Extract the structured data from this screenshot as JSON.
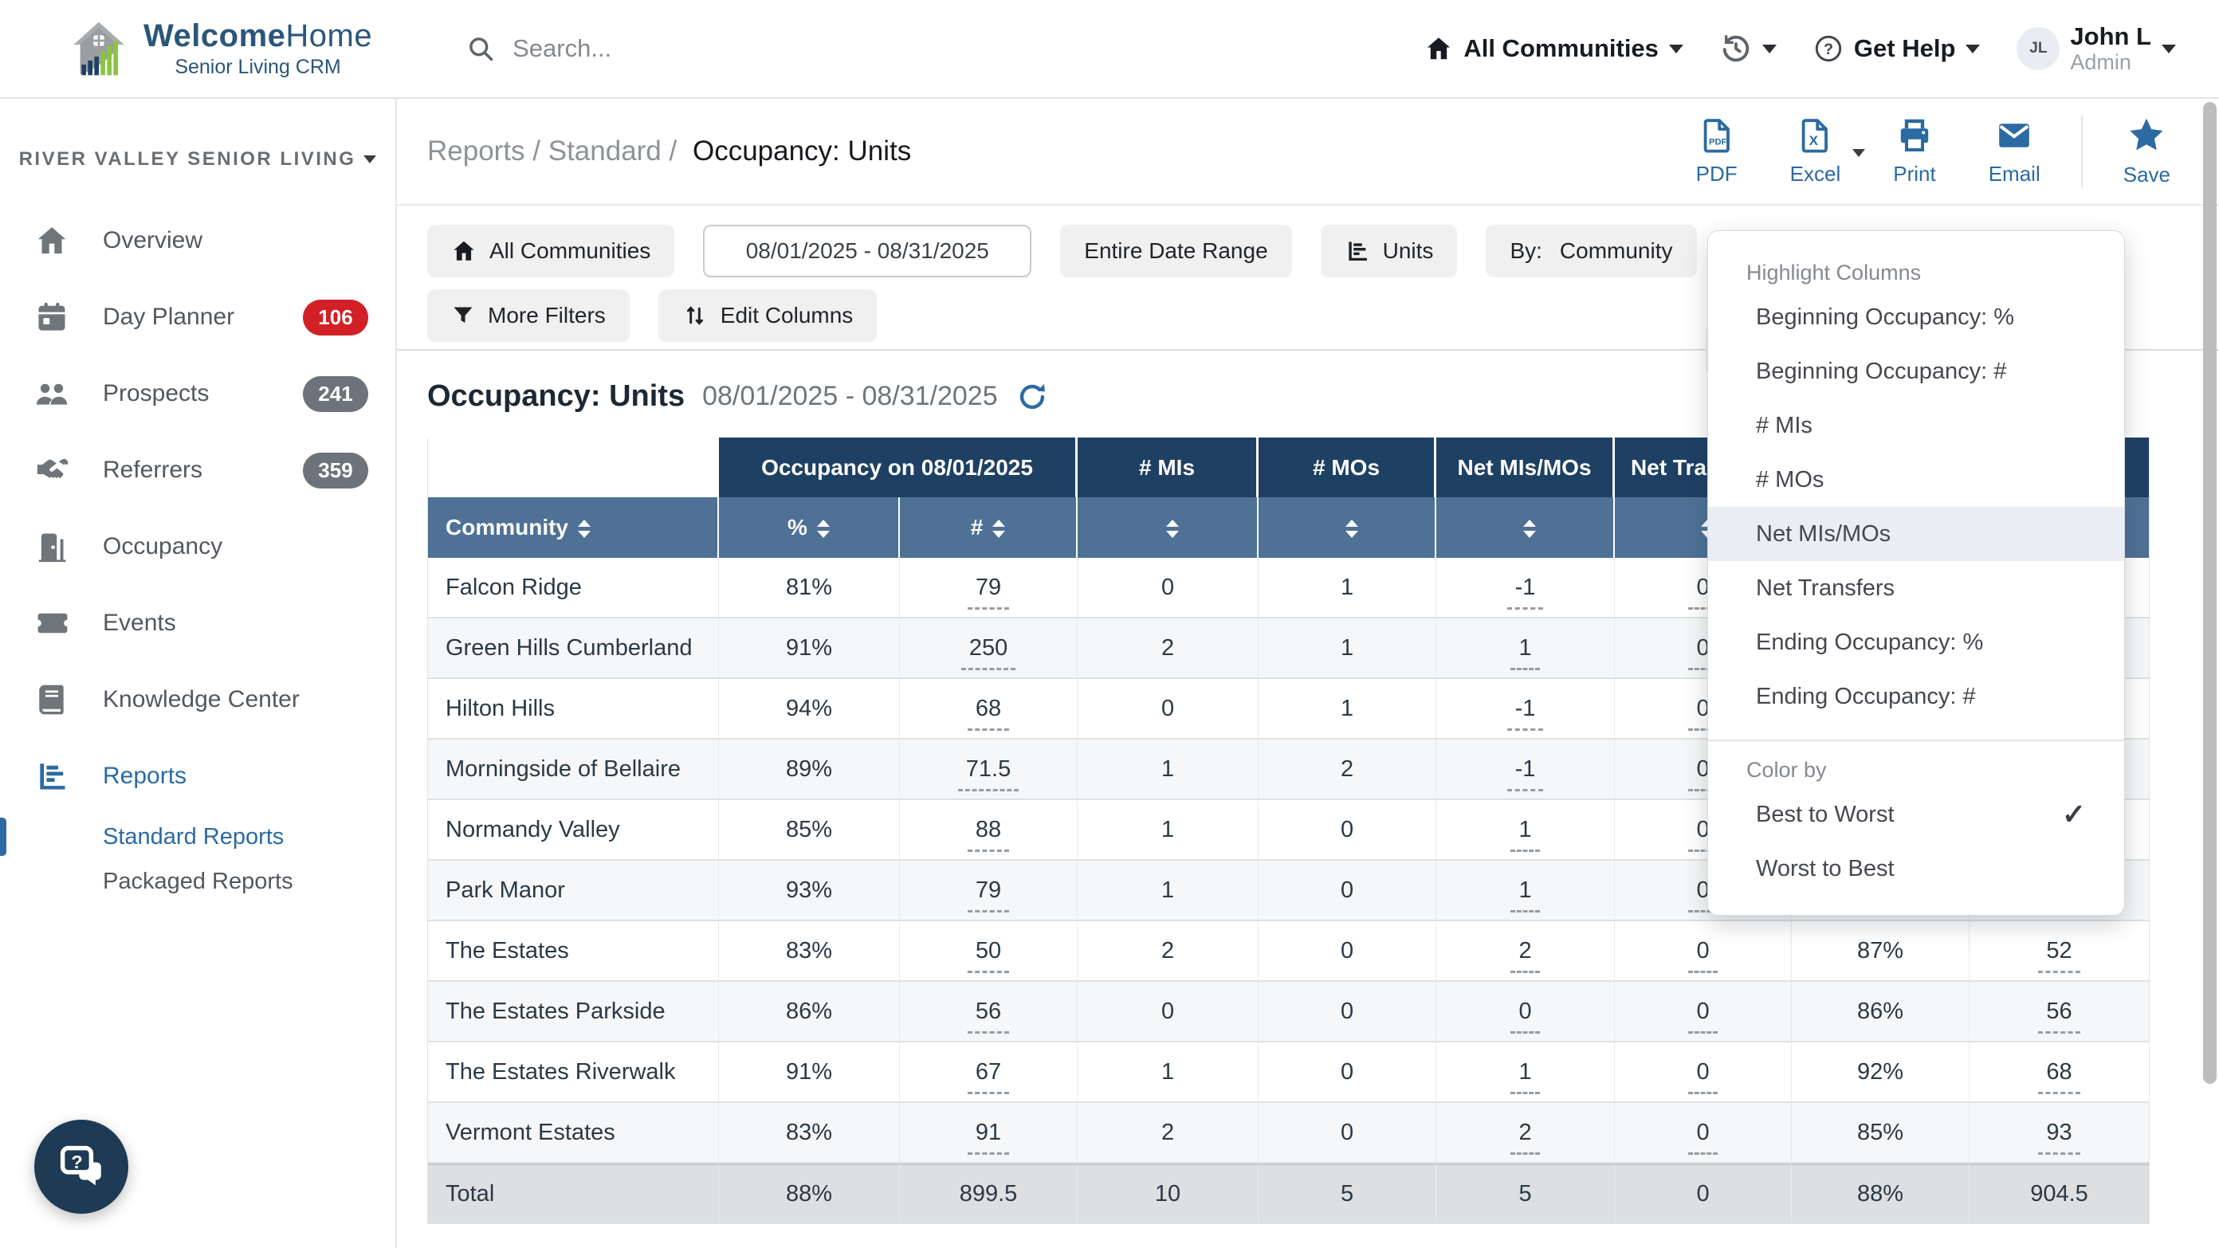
{
  "header": {
    "logo": {
      "title_bold": "Welcome",
      "title_light": "Home",
      "subtitle": "Senior Living CRM"
    },
    "search": {
      "placeholder": "Search..."
    },
    "community_selector": {
      "label": "All Communities"
    },
    "help": {
      "label": "Get Help"
    },
    "user": {
      "initials": "JL",
      "name": "John L",
      "role": "Admin"
    }
  },
  "sidebar": {
    "org": "RIVER VALLEY SENIOR LIVING",
    "items": [
      {
        "label": "Overview",
        "icon": "home-icon"
      },
      {
        "label": "Day Planner",
        "icon": "calendar-icon",
        "badge": "106",
        "badge_color": "#d12026"
      },
      {
        "label": "Prospects",
        "icon": "people-icon",
        "badge": "241",
        "badge_color": "#6d737a"
      },
      {
        "label": "Referrers",
        "icon": "handshake-icon",
        "badge": "359",
        "badge_color": "#6d737a"
      },
      {
        "label": "Occupancy",
        "icon": "door-icon"
      },
      {
        "label": "Events",
        "icon": "ticket-icon"
      },
      {
        "label": "Knowledge Center",
        "icon": "book-icon"
      },
      {
        "label": "Reports",
        "icon": "chart-icon",
        "active": true
      },
      {
        "label": "Standard Reports",
        "sub": true,
        "selected": true
      },
      {
        "label": "Packaged Reports",
        "sub": true
      }
    ]
  },
  "breadcrumb": {
    "path": "Reports / Standard /",
    "current": "Occupancy: Units"
  },
  "toolbar": {
    "pdf": "PDF",
    "excel": "Excel",
    "print": "Print",
    "email": "Email",
    "save": "Save"
  },
  "filters": {
    "all_communities": "All Communities",
    "date_range": "08/01/2025 - 08/31/2025",
    "entire_date_range": "Entire Date Range",
    "units": "Units",
    "by": "By:",
    "by_value": "Community",
    "more_filters": "More Filters",
    "edit_columns": "Edit Columns"
  },
  "report": {
    "title": "Occupancy: Units",
    "date_range": "08/01/2025 - 08/31/2025"
  },
  "table": {
    "group_headers": [
      {
        "label": "",
        "span": 1,
        "blank": true
      },
      {
        "label": "Occupancy on 08/01/2025",
        "span": 2
      },
      {
        "label": "# MIs",
        "span": 1
      },
      {
        "label": "# MOs",
        "span": 1
      },
      {
        "label": "Net MIs/MOs",
        "span": 1
      },
      {
        "label": "Net Transfers",
        "span": 1
      },
      {
        "label": "",
        "span": 2
      }
    ],
    "sub_headers": [
      "Community",
      "%",
      "#",
      "",
      "",
      "",
      "",
      "",
      ""
    ],
    "underline_cols": [
      2,
      5,
      6,
      8
    ],
    "rows": [
      [
        "Falcon Ridge",
        "81%",
        "79",
        "0",
        "1",
        "-1",
        "0",
        "",
        ""
      ],
      [
        "Green Hills Cumberland",
        "91%",
        "250",
        "2",
        "1",
        "1",
        "0",
        "",
        ""
      ],
      [
        "Hilton Hills",
        "94%",
        "68",
        "0",
        "1",
        "-1",
        "0",
        "",
        ""
      ],
      [
        "Morningside of Bellaire",
        "89%",
        "71.5",
        "1",
        "2",
        "-1",
        "0",
        "",
        ""
      ],
      [
        "Normandy Valley",
        "85%",
        "88",
        "1",
        "0",
        "1",
        "0",
        "",
        ""
      ],
      [
        "Park Manor",
        "93%",
        "79",
        "1",
        "0",
        "1",
        "0",
        "",
        ""
      ],
      [
        "The Estates",
        "83%",
        "50",
        "2",
        "0",
        "2",
        "0",
        "87%",
        "52"
      ],
      [
        "The Estates Parkside",
        "86%",
        "56",
        "0",
        "0",
        "0",
        "0",
        "86%",
        "56"
      ],
      [
        "The Estates Riverwalk",
        "91%",
        "67",
        "1",
        "0",
        "1",
        "0",
        "92%",
        "68"
      ],
      [
        "Vermont Estates",
        "83%",
        "91",
        "2",
        "0",
        "2",
        "0",
        "85%",
        "93"
      ]
    ],
    "total": [
      "Total",
      "88%",
      "899.5",
      "10",
      "5",
      "5",
      "0",
      "88%",
      "904.5"
    ]
  },
  "dropdown": {
    "section1_label": "Highlight Columns",
    "items": [
      "Beginning Occupancy: %",
      "Beginning Occupancy: #",
      "# MIs",
      "# MOs",
      "Net MIs/MOs",
      "Net Transfers",
      "Ending Occupancy: %",
      "Ending Occupancy: #"
    ],
    "highlighted": "Net MIs/MOs",
    "section2_label": "Color by",
    "color_items": [
      {
        "label": "Best to Worst",
        "checked": true
      },
      {
        "label": "Worst to Best",
        "checked": false
      }
    ]
  },
  "colors": {
    "accent_blue": "#2b6aa2",
    "header_navy": "#1e4063",
    "header_steel": "#4e7195",
    "badge_red": "#d12026",
    "badge_gray": "#6d737a"
  }
}
